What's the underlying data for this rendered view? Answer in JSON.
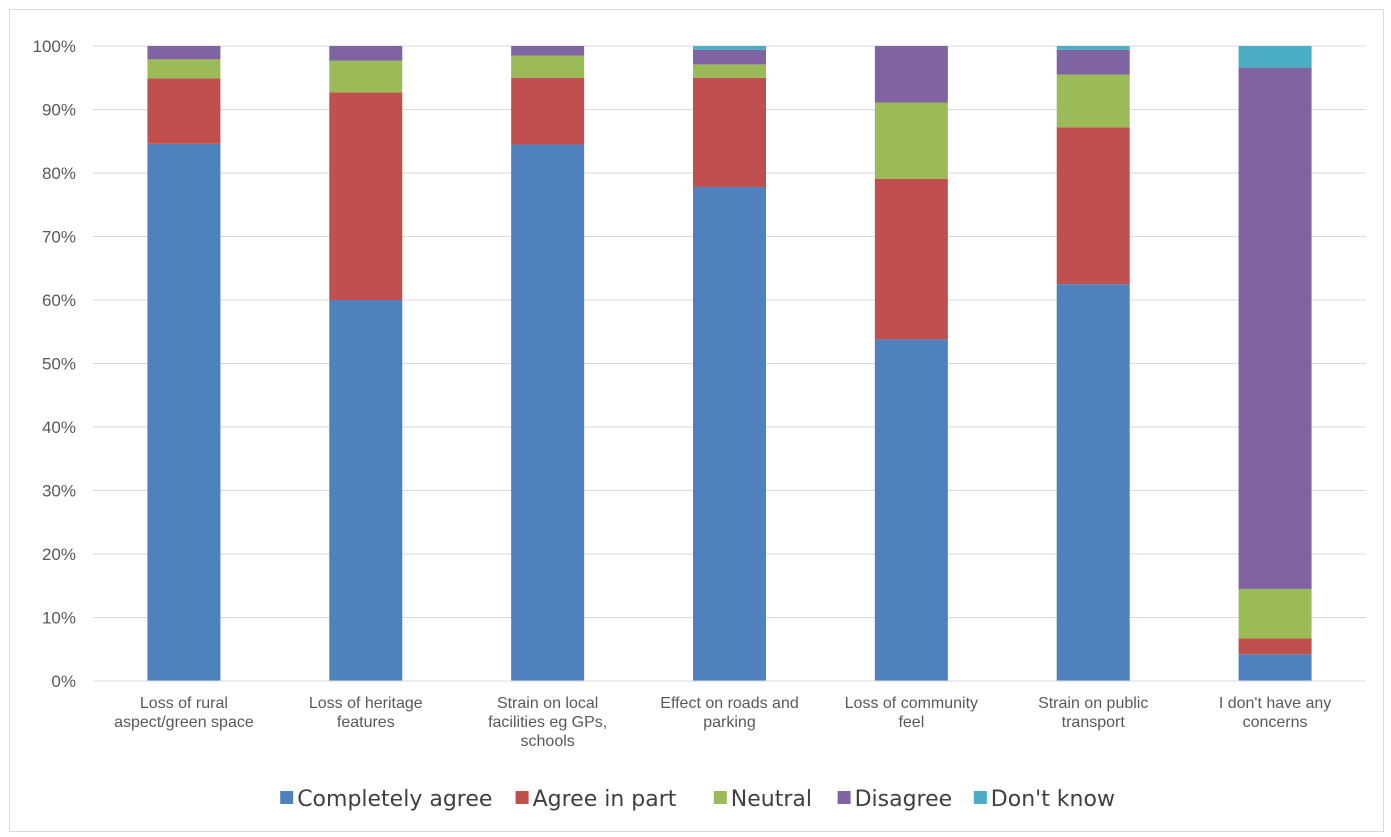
{
  "chart_data": {
    "type": "bar",
    "stacked": true,
    "percent_stacked": true,
    "categories": [
      [
        "Loss of rural",
        "aspect/green space"
      ],
      [
        "Loss of heritage",
        "features"
      ],
      [
        "Strain on local",
        "facilities eg GPs,",
        "schools"
      ],
      [
        "Effect on roads and",
        "parking"
      ],
      [
        "Loss of community",
        "feel"
      ],
      [
        "Strain on public",
        "transport"
      ],
      [
        "I don't have any",
        "concerns"
      ]
    ],
    "series": [
      {
        "name": "Completely agree",
        "color": "#4f81bd",
        "values": [
          84.6,
          60.0,
          84.5,
          77.8,
          53.8,
          62.5,
          4.2
        ]
      },
      {
        "name": "Agree in part",
        "color": "#c0504d",
        "values": [
          10.3,
          32.7,
          10.5,
          17.2,
          25.3,
          24.7,
          2.5
        ]
      },
      {
        "name": "Neutral",
        "color": "#9bbb59",
        "values": [
          3.0,
          5.0,
          3.5,
          2.1,
          12.0,
          8.3,
          7.8
        ]
      },
      {
        "name": "Disagree",
        "color": "#8064a2",
        "values": [
          2.1,
          2.3,
          1.5,
          2.3,
          8.9,
          3.9,
          82.1
        ]
      },
      {
        "name": "Don't know",
        "color": "#4bacc6",
        "values": [
          0.0,
          0.0,
          0.0,
          0.6,
          0.0,
          0.6,
          3.4
        ]
      }
    ],
    "y_ticks": [
      "0%",
      "10%",
      "20%",
      "30%",
      "40%",
      "50%",
      "60%",
      "70%",
      "80%",
      "90%",
      "100%"
    ],
    "ylim": [
      0,
      100
    ],
    "grid": true,
    "legend_position": "bottom"
  }
}
